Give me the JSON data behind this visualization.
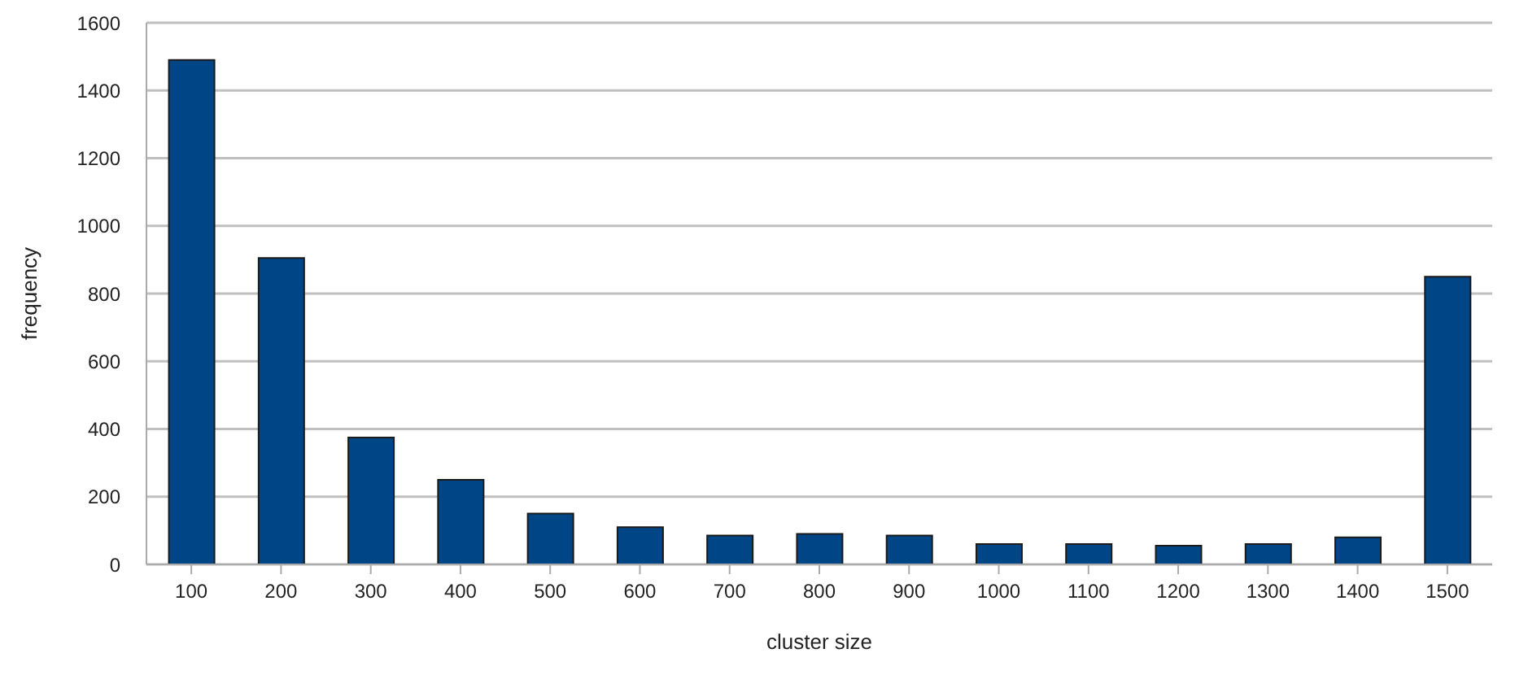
{
  "chart_data": {
    "type": "bar",
    "xlabel": "cluster size",
    "ylabel": "frequency",
    "categories": [
      "100",
      "200",
      "300",
      "400",
      "500",
      "600",
      "700",
      "800",
      "900",
      "1000",
      "1100",
      "1200",
      "1300",
      "1400",
      "1500"
    ],
    "values": [
      1490,
      905,
      375,
      250,
      150,
      110,
      85,
      90,
      85,
      60,
      60,
      55,
      60,
      80,
      850
    ],
    "color": "#004586",
    "ylim": [
      0,
      1600
    ],
    "yticks": [
      0,
      200,
      400,
      600,
      800,
      1000,
      1200,
      1400,
      1600
    ],
    "grid": "y"
  }
}
